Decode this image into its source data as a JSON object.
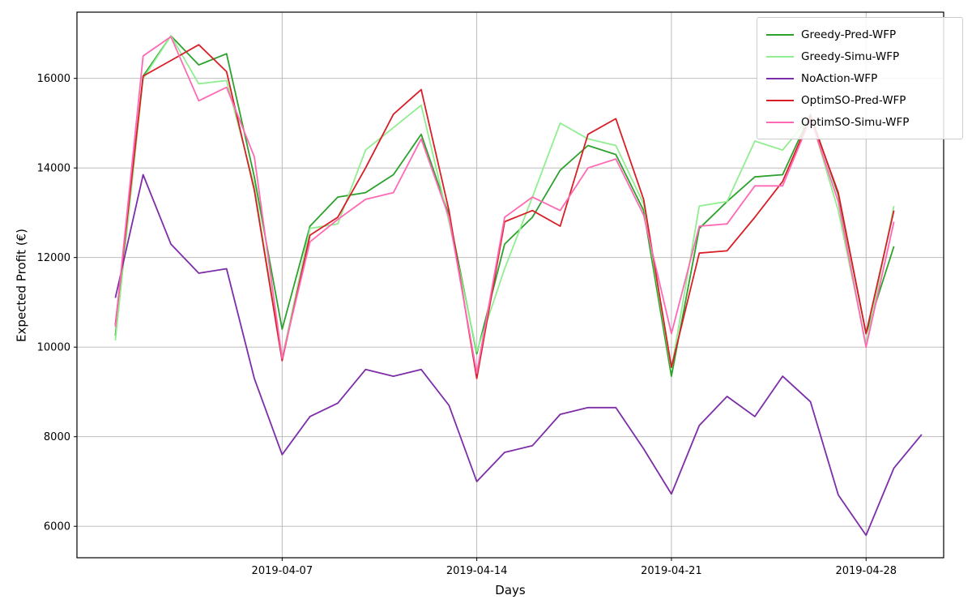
{
  "figure": {
    "background": "#ffffff",
    "grid_color": "#b4b4b4",
    "spine_color": "#000000",
    "tick_label_size": 13,
    "legend_position": "upper right"
  },
  "chart_data": {
    "type": "line",
    "title": "",
    "xlabel": "Days",
    "ylabel": "Expected Profit (€)",
    "x_unit": "day of April 2019",
    "x_days": [
      1,
      2,
      3,
      4,
      5,
      6,
      7,
      8,
      9,
      10,
      11,
      12,
      13,
      14,
      15,
      16,
      17,
      18,
      19,
      20,
      21,
      22,
      23,
      24,
      25,
      26,
      27,
      28,
      29,
      30
    ],
    "x_tick_days": [
      7,
      14,
      21,
      28
    ],
    "x_tick_labels": [
      "2019-04-07",
      "2019-04-14",
      "2019-04-21",
      "2019-04-28"
    ],
    "y_ticks": [
      6000,
      8000,
      10000,
      12000,
      14000,
      16000
    ],
    "ylim": [
      5298,
      17478
    ],
    "xlim_days": [
      -0.38,
      30.79
    ],
    "grid": true,
    "legend_entries": [
      "Greedy-Pred-WFP",
      "Greedy-Simu-WFP",
      "NoAction-WFP",
      "OptimSO-Pred-WFP",
      "OptimSO-Simu-WFP"
    ],
    "series": [
      {
        "name": "Greedy-Pred-WFP",
        "color": "#2ca12c",
        "values": [
          10250,
          16050,
          16950,
          16300,
          16550,
          13800,
          10400,
          12700,
          13350,
          13450,
          13850,
          14750,
          12950,
          9850,
          12300,
          12900,
          13950,
          14500,
          14300,
          13050,
          9350,
          12650,
          13250,
          13800,
          13850,
          15200,
          13400,
          10300,
          12250
        ]
      },
      {
        "name": "Greedy-Simu-WFP",
        "color": "#90ee90",
        "values": [
          10150,
          16000,
          16950,
          15880,
          15950,
          13600,
          9750,
          12650,
          12750,
          14400,
          14900,
          15400,
          12800,
          9900,
          11750,
          13350,
          15000,
          14650,
          14500,
          13200,
          9500,
          13150,
          13250,
          14600,
          14400,
          15150,
          13050,
          10050,
          13150
        ]
      },
      {
        "name": "NoAction-WFP",
        "color": "#7d2da8",
        "values": [
          11100,
          13850,
          12300,
          11650,
          11750,
          9300,
          7600,
          8450,
          8750,
          9500,
          9350,
          9500,
          8700,
          7000,
          7650,
          7800,
          8500,
          8650,
          8650,
          7730,
          6720,
          8250,
          8900,
          8450,
          9350,
          8780,
          6700,
          5800,
          7300,
          8050
        ]
      },
      {
        "name": "OptimSO-Pred-WFP",
        "color": "#d81e26",
        "values": [
          10500,
          16050,
          16400,
          16750,
          16150,
          13500,
          9700,
          12500,
          12900,
          14000,
          15200,
          15750,
          13050,
          9300,
          12800,
          13050,
          12700,
          14750,
          15100,
          13300,
          9550,
          12100,
          12150,
          12900,
          13700,
          15150,
          13450,
          10300,
          13050
        ]
      },
      {
        "name": "OptimSO-Simu-WFP",
        "color": "#ff69b4",
        "values": [
          10450,
          16500,
          16930,
          15500,
          15800,
          14250,
          9750,
          12350,
          12850,
          13300,
          13450,
          14650,
          12900,
          9420,
          12900,
          13350,
          13050,
          14000,
          14200,
          12950,
          10300,
          12700,
          12750,
          13600,
          13600,
          15100,
          13250,
          10000,
          12800
        ]
      }
    ]
  }
}
